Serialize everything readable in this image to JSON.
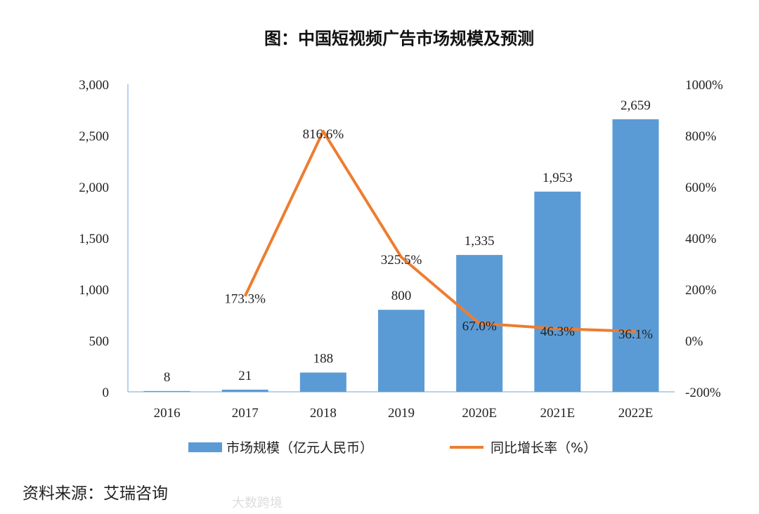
{
  "chart_data": {
    "type": "bar+line",
    "title": "图：中国短视频广告市场规模及预测",
    "categories": [
      "2016",
      "2017",
      "2018",
      "2019",
      "2020E",
      "2021E",
      "2022E"
    ],
    "series": [
      {
        "name": "市场规模（亿元人民币）",
        "type": "bar",
        "axis": "left",
        "values": [
          8,
          21,
          188,
          800,
          1335,
          1953,
          2659
        ],
        "labels": [
          "8",
          "21",
          "188",
          "800",
          "1,335",
          "1,953",
          "2,659"
        ],
        "color": "#5b9bd5"
      },
      {
        "name": "同比增长率（%）",
        "type": "line",
        "axis": "right",
        "values": [
          null,
          173.3,
          816.6,
          325.5,
          67.0,
          46.3,
          36.1
        ],
        "labels": [
          "",
          "173.3%",
          "816.6%",
          "325.5%",
          "67.0%",
          "46.3%",
          "36.1%"
        ],
        "color": "#ed7d31"
      }
    ],
    "left_axis": {
      "ylim": [
        0,
        3000
      ],
      "ticks": [
        "0",
        "500",
        "1,000",
        "1,500",
        "2,000",
        "2,500",
        "3,000"
      ]
    },
    "right_axis": {
      "ylim": [
        -200,
        1000
      ],
      "ticks": [
        "-200%",
        "0%",
        "200%",
        "400%",
        "600%",
        "800%",
        "1000%"
      ]
    },
    "grid": false,
    "legend": "bottom"
  },
  "source": "资料来源：艾瑞咨询",
  "watermark": "大数跨境"
}
